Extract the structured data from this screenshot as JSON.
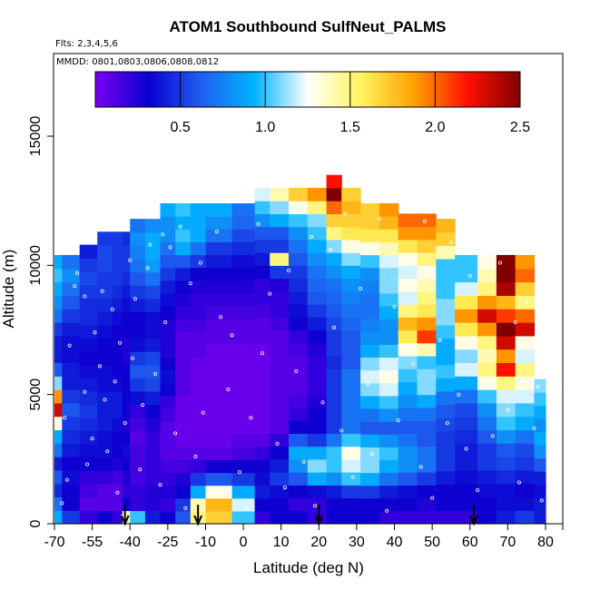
{
  "chart_data": {
    "type": "heatmap",
    "title": "ATOM1 Southbound SulfNeut_PALMS",
    "annotations": [
      "Flts: 2,3,4,5,6",
      "MMDD: 0801,0803,0806,0808,0812"
    ],
    "xlabel": "Latitude (deg N)",
    "ylabel": "Altitude (m)",
    "x_tick_labels": [
      "-70",
      "-55",
      "-40",
      "-25",
      "-10",
      "0",
      "10",
      "20",
      "30",
      "40",
      "50",
      "60",
      "70",
      "80"
    ],
    "y_ticks": [
      0,
      5000,
      10000,
      15000
    ],
    "y_tick_labels": [
      "0",
      "5000",
      "10000",
      "15000"
    ],
    "ylim": [
      0,
      17500
    ],
    "colorbar": {
      "range": [
        0,
        2.5
      ],
      "ticks": [
        0.5,
        1.0,
        1.5,
        2.0,
        2.5
      ],
      "tick_labels": [
        "0.5",
        "1.0",
        "1.5",
        "2.0",
        "2.5"
      ],
      "colors": [
        "#7a00f0",
        "#0a00d0",
        "#1f5ff0",
        "#00b4ff",
        "#ffffff",
        "#fff460",
        "#ffa200",
        "#ff1000",
        "#800000"
      ]
    },
    "arrow_latitudes": [
      -42,
      -13,
      20,
      61
    ],
    "columns": [
      {
        "x0": -70,
        "x1": -67,
        "top": 10400,
        "v": [
          0.9,
          0.7,
          0.45,
          0.6,
          0.4,
          0.7,
          0.9,
          1.3,
          2.3,
          1.9,
          1.1,
          0.6,
          0.4,
          0.4,
          0.5,
          0.7,
          0.8,
          0.9,
          1.0,
          0.9
        ]
      },
      {
        "x0": -67,
        "x1": -60,
        "top": 10400,
        "v": [
          0.5,
          0.3,
          0.3,
          0.35,
          0.3,
          0.4,
          0.45,
          0.5,
          0.6,
          0.5,
          0.4,
          0.4,
          0.35,
          0.35,
          0.4,
          0.5,
          0.6,
          0.7,
          0.8,
          0.7
        ]
      },
      {
        "x0": -60,
        "x1": -53,
        "top": 10800,
        "v": [
          0.2,
          0.1,
          0.15,
          0.2,
          0.3,
          0.35,
          0.4,
          0.45,
          0.5,
          0.45,
          0.4,
          0.35,
          0.3,
          0.35,
          0.4,
          0.45,
          0.45,
          0.5,
          0.55,
          0.5,
          0.4
        ]
      },
      {
        "x0": -53,
        "x1": -47,
        "top": 11300,
        "v": [
          0.3,
          0.1,
          0.1,
          0.2,
          0.3,
          0.35,
          0.35,
          0.4,
          0.4,
          0.4,
          0.35,
          0.35,
          0.3,
          0.3,
          0.35,
          0.4,
          0.45,
          0.5,
          0.5,
          0.55,
          0.55,
          0.5
        ]
      },
      {
        "x0": -47,
        "x1": -43,
        "top": 11300,
        "v": [
          0.2,
          0.1,
          0.1,
          0.15,
          0.25,
          0.3,
          0.3,
          0.35,
          0.4,
          0.4,
          0.35,
          0.3,
          0.3,
          0.3,
          0.3,
          0.35,
          0.4,
          0.45,
          0.5,
          0.5,
          0.5,
          0.5
        ]
      },
      {
        "x0": -43,
        "x1": -40,
        "top": 11300,
        "v": [
          1.4,
          0.3,
          0.2,
          0.25,
          0.3,
          0.35,
          0.3,
          0.25,
          0.3,
          0.3,
          0.3,
          0.3,
          0.25,
          0.25,
          0.3,
          0.3,
          0.35,
          0.4,
          0.45,
          0.5,
          0.5,
          0.45
        ]
      },
      {
        "x0": -40,
        "x1": -34,
        "top": 11800,
        "v": [
          1.0,
          0.2,
          0.2,
          0.15,
          0.15,
          0.15,
          0.1,
          0.15,
          0.2,
          0.35,
          0.5,
          0.6,
          0.5,
          0.35,
          0.3,
          0.3,
          0.4,
          0.5,
          0.6,
          0.7,
          0.75,
          0.8,
          0.7
        ]
      },
      {
        "x0": -34,
        "x1": -28,
        "top": 11800,
        "v": [
          0.4,
          0.25,
          0.25,
          0.2,
          0.2,
          0.2,
          0.2,
          0.25,
          0.3,
          0.4,
          0.55,
          0.6,
          0.55,
          0.4,
          0.35,
          0.35,
          0.45,
          0.55,
          0.7,
          0.85,
          0.9,
          0.9,
          0.8
        ]
      },
      {
        "x0": -28,
        "x1": -22,
        "top": 12400,
        "v": [
          0.3,
          0.2,
          0.25,
          0.2,
          0.15,
          0.1,
          0.1,
          0.1,
          0.15,
          0.2,
          0.3,
          0.35,
          0.3,
          0.25,
          0.25,
          0.25,
          0.3,
          0.35,
          0.4,
          0.5,
          0.6,
          0.7,
          0.8,
          0.8,
          0.9
        ]
      },
      {
        "x0": -22,
        "x1": -16,
        "top": 12400,
        "v": [
          0.6,
          0.5,
          0.3,
          0.25,
          0.15,
          0.1,
          0.05,
          0.05,
          0.05,
          0.05,
          0.1,
          0.1,
          0.1,
          0.1,
          0.1,
          0.15,
          0.2,
          0.25,
          0.3,
          0.4,
          0.6,
          0.9,
          1.0,
          0.9,
          1.0
        ]
      },
      {
        "x0": -16,
        "x1": -10,
        "top": 12400,
        "v": [
          1.5,
          1.4,
          0.9,
          0.5,
          0.2,
          0.1,
          0.05,
          0.05,
          0.05,
          0.05,
          0.05,
          0.05,
          0.05,
          0.1,
          0.1,
          0.15,
          0.2,
          0.2,
          0.25,
          0.3,
          0.5,
          0.7,
          0.9,
          0.9,
          0.9
        ]
      },
      {
        "x0": -10,
        "x1": -3,
        "top": 12400,
        "v": [
          1.7,
          1.8,
          1.3,
          0.6,
          0.3,
          0.1,
          0.05,
          0.05,
          0.05,
          0.05,
          0.05,
          0.05,
          0.05,
          0.05,
          0.1,
          0.1,
          0.15,
          0.2,
          0.25,
          0.3,
          0.4,
          0.5,
          0.7,
          0.8,
          0.9
        ]
      },
      {
        "x0": -3,
        "x1": 3,
        "top": 12400,
        "v": [
          1.0,
          1.2,
          0.9,
          0.5,
          0.3,
          0.15,
          0.1,
          0.05,
          0.05,
          0.05,
          0.05,
          0.05,
          0.05,
          0.05,
          0.1,
          0.1,
          0.15,
          0.2,
          0.25,
          0.3,
          0.35,
          0.45,
          0.55,
          0.65,
          0.7
        ]
      },
      {
        "x0": 3,
        "x1": 7,
        "top": 13000,
        "v": [
          0.2,
          0.3,
          0.4,
          0.35,
          0.3,
          0.2,
          0.1,
          0.05,
          0.05,
          0.05,
          0.05,
          0.05,
          0.05,
          0.05,
          0.1,
          0.1,
          0.15,
          0.2,
          0.2,
          0.3,
          0.4,
          0.5,
          0.6,
          0.8,
          1.0,
          1.2
        ]
      },
      {
        "x0": 7,
        "x1": 12,
        "top": 13000,
        "v": [
          0.3,
          0.3,
          0.35,
          0.5,
          0.4,
          0.3,
          0.2,
          0.1,
          0.1,
          0.1,
          0.1,
          0.1,
          0.1,
          0.1,
          0.1,
          0.15,
          0.2,
          0.2,
          0.25,
          0.5,
          1.5,
          0.5,
          0.6,
          0.9,
          1.1,
          1.4
        ]
      },
      {
        "x0": 12,
        "x1": 17,
        "top": 13000,
        "v": [
          0.3,
          0.2,
          0.3,
          0.6,
          0.8,
          0.9,
          0.6,
          0.3,
          0.2,
          0.15,
          0.1,
          0.1,
          0.1,
          0.15,
          0.2,
          0.3,
          0.35,
          0.4,
          0.45,
          0.5,
          0.6,
          0.7,
          0.8,
          1.0,
          1.3,
          1.7
        ]
      },
      {
        "x0": 17,
        "x1": 22,
        "top": 13000,
        "v": [
          0.2,
          0.2,
          0.35,
          0.9,
          1.1,
          0.9,
          0.5,
          0.3,
          0.3,
          0.25,
          0.2,
          0.2,
          0.2,
          0.25,
          0.3,
          0.4,
          0.5,
          0.6,
          0.65,
          0.7,
          0.8,
          0.9,
          1.0,
          1.1,
          1.5,
          1.9
        ]
      },
      {
        "x0": 22,
        "x1": 26,
        "top": 13500,
        "v": [
          0.3,
          0.3,
          0.4,
          0.8,
          1.0,
          1.0,
          0.7,
          0.5,
          0.5,
          0.5,
          0.5,
          0.5,
          0.45,
          0.5,
          0.5,
          0.55,
          0.6,
          0.65,
          0.7,
          0.8,
          0.9,
          1.1,
          1.5,
          1.7,
          2.0,
          2.5,
          2.2
        ]
      },
      {
        "x0": 26,
        "x1": 31,
        "top": 13000,
        "v": [
          0.3,
          0.3,
          0.5,
          1.0,
          1.2,
          1.3,
          1.0,
          0.7,
          0.7,
          0.7,
          0.7,
          0.7,
          0.6,
          0.6,
          0.6,
          0.65,
          0.7,
          0.75,
          0.8,
          0.9,
          1.1,
          1.3,
          1.6,
          1.7,
          1.8,
          1.7
        ]
      },
      {
        "x0": 31,
        "x1": 36,
        "top": 12400,
        "v": [
          0.3,
          0.3,
          0.5,
          0.9,
          1.1,
          1.1,
          0.9,
          0.6,
          0.7,
          0.9,
          1.1,
          1.2,
          1.1,
          0.9,
          0.8,
          0.75,
          0.7,
          0.7,
          0.75,
          0.8,
          1.0,
          1.3,
          1.6,
          1.7,
          1.7
        ]
      },
      {
        "x0": 36,
        "x1": 41,
        "top": 12400,
        "v": [
          0.2,
          0.3,
          0.4,
          0.7,
          0.9,
          1.0,
          0.8,
          0.6,
          0.8,
          1.0,
          1.2,
          1.3,
          1.2,
          1.0,
          0.8,
          0.8,
          0.9,
          1.0,
          1.1,
          1.1,
          1.2,
          1.4,
          1.6,
          1.8,
          1.9
        ]
      },
      {
        "x0": 41,
        "x1": 46,
        "top": 12000,
        "v": [
          0.2,
          0.3,
          0.35,
          0.6,
          0.8,
          0.8,
          0.7,
          0.6,
          0.7,
          0.8,
          0.9,
          1.0,
          1.1,
          1.3,
          1.6,
          1.8,
          1.5,
          1.2,
          1.3,
          1.2,
          1.3,
          1.6,
          1.9,
          2.0
        ]
      },
      {
        "x0": 46,
        "x1": 51,
        "top": 12000,
        "v": [
          0.2,
          0.25,
          0.3,
          0.5,
          0.7,
          0.7,
          0.6,
          0.6,
          0.7,
          0.9,
          1.1,
          1.1,
          1.0,
          1.4,
          2.1,
          1.9,
          1.6,
          1.5,
          1.4,
          1.3,
          1.5,
          1.7,
          1.9,
          2.0
        ]
      },
      {
        "x0": 51,
        "x1": 56,
        "top": 11800,
        "v": [
          0.2,
          0.3,
          0.3,
          0.4,
          0.5,
          0.5,
          0.5,
          0.55,
          0.6,
          0.7,
          0.9,
          1.0,
          0.9,
          0.9,
          1.0,
          1.1,
          1.1,
          1.0,
          1.0,
          1.0,
          1.4,
          1.7,
          1.8
        ]
      },
      {
        "x0": 56,
        "x1": 62,
        "top": 10400,
        "v": [
          0.2,
          0.3,
          0.3,
          0.35,
          0.4,
          0.4,
          0.45,
          0.5,
          0.55,
          0.7,
          0.9,
          1.2,
          1.1,
          1.3,
          1.6,
          1.9,
          1.6,
          1.2,
          1.0,
          1.0
        ]
      },
      {
        "x0": 62,
        "x1": 67,
        "top": 10400,
        "v": [
          0.3,
          0.3,
          0.35,
          0.4,
          0.5,
          0.5,
          0.6,
          0.7,
          0.8,
          1.0,
          1.3,
          1.5,
          1.4,
          1.5,
          1.9,
          2.3,
          1.9,
          1.5,
          1.4,
          1.3
        ]
      },
      {
        "x0": 67,
        "x1": 72,
        "top": 10400,
        "v": [
          0.4,
          0.35,
          0.35,
          0.45,
          0.55,
          0.6,
          0.8,
          1.0,
          1.1,
          1.2,
          1.5,
          2.2,
          1.9,
          2.3,
          2.6,
          2.1,
          1.8,
          2.4,
          2.6,
          2.6
        ]
      },
      {
        "x0": 72,
        "x1": 77,
        "top": 10400,
        "v": [
          0.5,
          0.35,
          0.3,
          0.4,
          0.5,
          0.55,
          0.7,
          0.9,
          1.0,
          1.2,
          1.3,
          1.5,
          1.2,
          1.3,
          2.3,
          2.0,
          1.5,
          1.7,
          2.0,
          1.9
        ]
      },
      {
        "x0": 77,
        "x1": 80,
        "top": 5600,
        "v": [
          0.4,
          0.4,
          0.35,
          0.4,
          0.6,
          0.8,
          0.9,
          0.8,
          0.9,
          1.0,
          1.1
        ]
      }
    ],
    "points": [
      [
        -67,
        800
      ],
      [
        -65,
        1700
      ],
      [
        -66,
        4100
      ],
      [
        -64,
        6900
      ],
      [
        -62,
        9200
      ],
      [
        -61,
        9700
      ],
      [
        -58,
        8800
      ],
      [
        -58,
        5100
      ],
      [
        -57,
        2300
      ],
      [
        -55,
        3300
      ],
      [
        -54,
        7400
      ],
      [
        -52,
        6100
      ],
      [
        -51,
        9000
      ],
      [
        -50,
        4800
      ],
      [
        -49,
        2800
      ],
      [
        -47,
        8300
      ],
      [
        -46,
        5500
      ],
      [
        -45,
        1200
      ],
      [
        -44,
        7000
      ],
      [
        -43,
        300
      ],
      [
        -42,
        3900
      ],
      [
        -40,
        10200
      ],
      [
        -39,
        6400
      ],
      [
        -38,
        8700
      ],
      [
        -36,
        2100
      ],
      [
        -35,
        4600
      ],
      [
        -33,
        9900
      ],
      [
        -32,
        10800
      ],
      [
        -30,
        5800
      ],
      [
        -28,
        1500
      ],
      [
        -27,
        11200
      ],
      [
        -26,
        7800
      ],
      [
        -24,
        10700
      ],
      [
        -22,
        3500
      ],
      [
        -20,
        11500
      ],
      [
        -18,
        600
      ],
      [
        -16,
        9300
      ],
      [
        -14,
        2600
      ],
      [
        -12,
        10100
      ],
      [
        -11,
        4300
      ],
      [
        -9,
        1100
      ],
      [
        -7,
        11300
      ],
      [
        -6,
        8000
      ],
      [
        -4,
        5200
      ],
      [
        -3,
        7300
      ],
      [
        -1,
        2000
      ],
      [
        1,
        600
      ],
      [
        2,
        4100
      ],
      [
        4,
        11600
      ],
      [
        5,
        6600
      ],
      [
        7,
        8900
      ],
      [
        9,
        3100
      ],
      [
        11,
        1400
      ],
      [
        12,
        9800
      ],
      [
        14,
        5900
      ],
      [
        16,
        2400
      ],
      [
        18,
        11100
      ],
      [
        19,
        700
      ],
      [
        21,
        4700
      ],
      [
        23,
        10600
      ],
      [
        24,
        7600
      ],
      [
        26,
        3600
      ],
      [
        27,
        12000
      ],
      [
        29,
        1800
      ],
      [
        31,
        9100
      ],
      [
        33,
        5400
      ],
      [
        34,
        2700
      ],
      [
        36,
        11800
      ],
      [
        38,
        500
      ],
      [
        40,
        8400
      ],
      [
        41,
        4000
      ],
      [
        43,
        10300
      ],
      [
        45,
        6200
      ],
      [
        47,
        2200
      ],
      [
        48,
        11700
      ],
      [
        50,
        1000
      ],
      [
        52,
        7100
      ],
      [
        54,
        3900
      ],
      [
        55,
        10900
      ],
      [
        57,
        5000
      ],
      [
        59,
        2900
      ],
      [
        60,
        9600
      ],
      [
        62,
        1300
      ],
      [
        64,
        6700
      ],
      [
        66,
        3400
      ],
      [
        68,
        10100
      ],
      [
        70,
        4400
      ],
      [
        72,
        7800
      ],
      [
        73,
        1600
      ],
      [
        75,
        8600
      ],
      [
        77,
        3700
      ],
      [
        78,
        5300
      ],
      [
        79,
        900
      ]
    ]
  }
}
